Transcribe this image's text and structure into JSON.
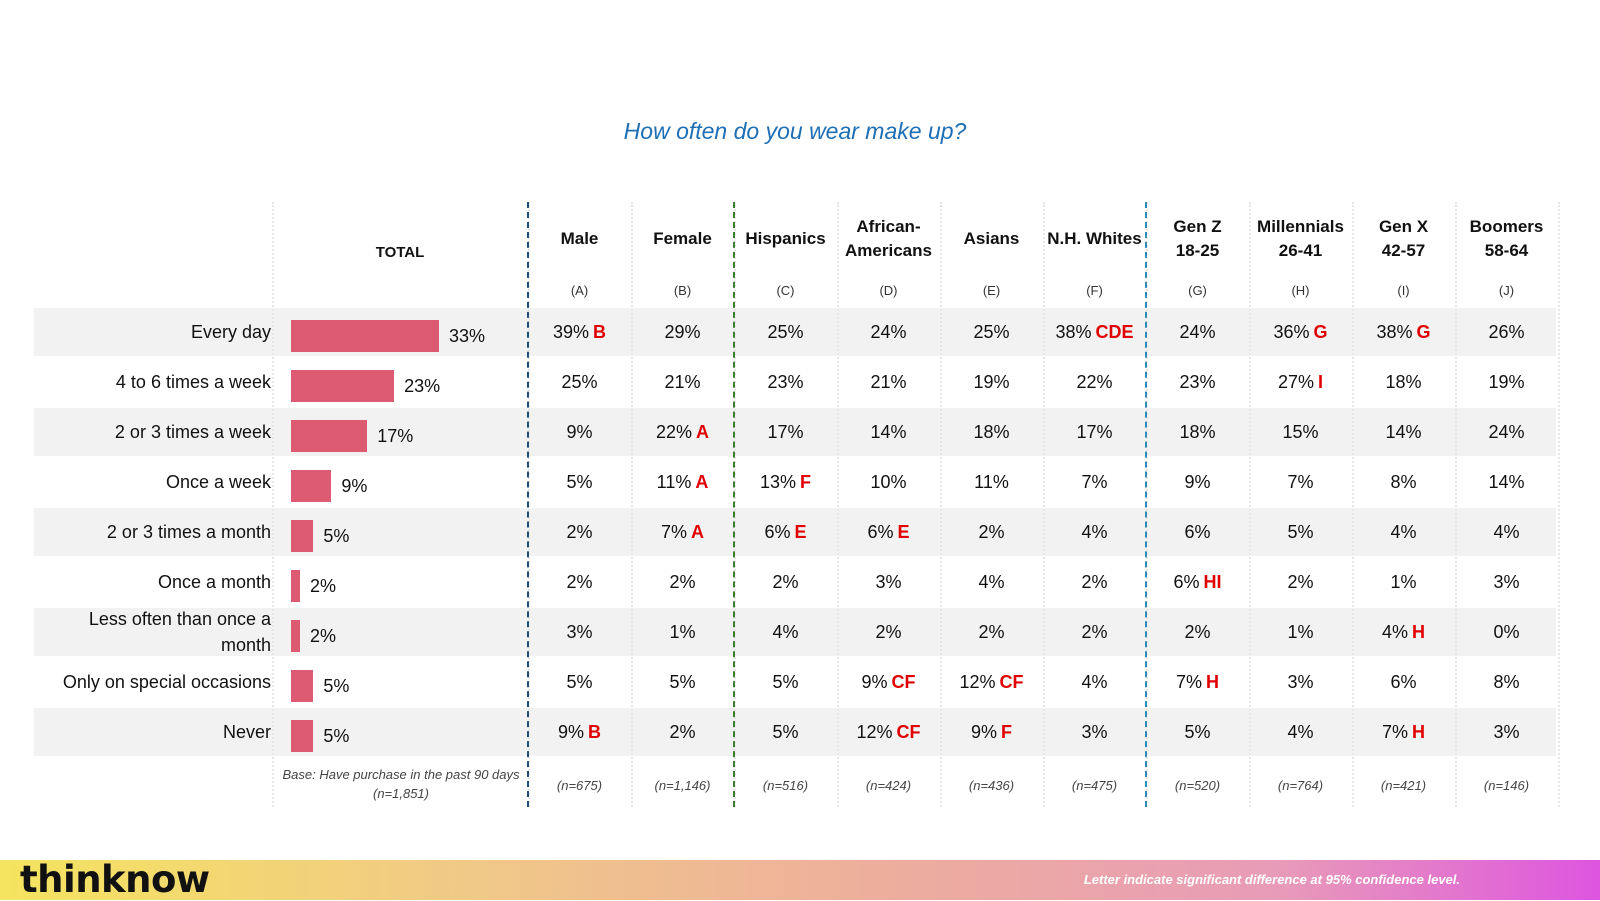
{
  "title": "How often do you wear make up?",
  "total_header": "TOTAL",
  "base_note": "Base: Have purchase in the past 90 days (n=1,851)",
  "footer": {
    "logo": "thinknow",
    "note": "Letter indicate significant difference at 95% confidence level."
  },
  "colors": {
    "bar": "#DC5A72",
    "sig": "#E00000",
    "title": "#1F6FB5"
  },
  "columns": [
    {
      "name": "Male",
      "letter": "(A)",
      "base": "(n=675)"
    },
    {
      "name": "Female",
      "letter": "(B)",
      "base": "(n=1,146)"
    },
    {
      "name": "Hispanics",
      "letter": "(C)",
      "base": "(n=516)"
    },
    {
      "name": "African-\nAmericans",
      "letter": "(D)",
      "base": "(n=424)"
    },
    {
      "name": "Asians",
      "letter": "(E)",
      "base": "(n=436)"
    },
    {
      "name": "N.H. Whites",
      "letter": "(F)",
      "base": "(n=475)"
    },
    {
      "name": "Gen Z\n18-25",
      "letter": "(G)",
      "base": "(n=520)"
    },
    {
      "name": "Millennials\n26-41",
      "letter": "(H)",
      "base": "(n=764)"
    },
    {
      "name": "Gen X\n42-57",
      "letter": "(I)",
      "base": "(n=421)"
    },
    {
      "name": "Boomers\n58-64",
      "letter": "(J)",
      "base": "(n=146)"
    }
  ],
  "rows": [
    {
      "label": "Every day",
      "total": "33%",
      "cells": [
        [
          "39%",
          "B"
        ],
        [
          "29%",
          ""
        ],
        [
          "25%",
          ""
        ],
        [
          "24%",
          ""
        ],
        [
          "25%",
          ""
        ],
        [
          "38%",
          "CDE"
        ],
        [
          "24%",
          ""
        ],
        [
          "36%",
          "G"
        ],
        [
          "38%",
          "G"
        ],
        [
          "26%",
          ""
        ]
      ]
    },
    {
      "label": "4 to 6 times a week",
      "total": "23%",
      "cells": [
        [
          "25%",
          ""
        ],
        [
          "21%",
          ""
        ],
        [
          "23%",
          ""
        ],
        [
          "21%",
          ""
        ],
        [
          "19%",
          ""
        ],
        [
          "22%",
          ""
        ],
        [
          "23%",
          ""
        ],
        [
          "27%",
          "I"
        ],
        [
          "18%",
          ""
        ],
        [
          "19%",
          ""
        ]
      ]
    },
    {
      "label": "2 or 3 times a week",
      "total": "17%",
      "cells": [
        [
          "9%",
          ""
        ],
        [
          "22%",
          "A"
        ],
        [
          "17%",
          ""
        ],
        [
          "14%",
          ""
        ],
        [
          "18%",
          ""
        ],
        [
          "17%",
          ""
        ],
        [
          "18%",
          ""
        ],
        [
          "15%",
          ""
        ],
        [
          "14%",
          ""
        ],
        [
          "24%",
          ""
        ]
      ]
    },
    {
      "label": "Once a week",
      "total": "9%",
      "cells": [
        [
          "5%",
          ""
        ],
        [
          "11%",
          "A"
        ],
        [
          "13%",
          "F"
        ],
        [
          "10%",
          ""
        ],
        [
          "11%",
          ""
        ],
        [
          "7%",
          ""
        ],
        [
          "9%",
          ""
        ],
        [
          "7%",
          ""
        ],
        [
          "8%",
          ""
        ],
        [
          "14%",
          ""
        ]
      ]
    },
    {
      "label": "2 or 3 times a month",
      "total": "5%",
      "cells": [
        [
          "2%",
          ""
        ],
        [
          "7%",
          "A"
        ],
        [
          "6%",
          "E"
        ],
        [
          "6%",
          "E"
        ],
        [
          "2%",
          ""
        ],
        [
          "4%",
          ""
        ],
        [
          "6%",
          ""
        ],
        [
          "5%",
          ""
        ],
        [
          "4%",
          ""
        ],
        [
          "4%",
          ""
        ]
      ]
    },
    {
      "label": "Once a month",
      "total": "2%",
      "cells": [
        [
          "2%",
          ""
        ],
        [
          "2%",
          ""
        ],
        [
          "2%",
          ""
        ],
        [
          "3%",
          ""
        ],
        [
          "4%",
          ""
        ],
        [
          "2%",
          ""
        ],
        [
          "6%",
          "HI"
        ],
        [
          "2%",
          ""
        ],
        [
          "1%",
          ""
        ],
        [
          "3%",
          ""
        ]
      ]
    },
    {
      "label": "Less often than once a month",
      "total": "2%",
      "cells": [
        [
          "3%",
          ""
        ],
        [
          "1%",
          ""
        ],
        [
          "4%",
          ""
        ],
        [
          "2%",
          ""
        ],
        [
          "2%",
          ""
        ],
        [
          "2%",
          ""
        ],
        [
          "2%",
          ""
        ],
        [
          "1%",
          ""
        ],
        [
          "4%",
          "H"
        ],
        [
          "0%",
          ""
        ]
      ]
    },
    {
      "label": "Only on special occasions",
      "total": "5%",
      "cells": [
        [
          "5%",
          ""
        ],
        [
          "5%",
          ""
        ],
        [
          "5%",
          ""
        ],
        [
          "9%",
          "CF"
        ],
        [
          "12%",
          "CF"
        ],
        [
          "4%",
          ""
        ],
        [
          "7%",
          "H"
        ],
        [
          "3%",
          ""
        ],
        [
          "6%",
          ""
        ],
        [
          "8%",
          ""
        ]
      ]
    },
    {
      "label": "Never",
      "total": "5%",
      "cells": [
        [
          "9%",
          "B"
        ],
        [
          "2%",
          ""
        ],
        [
          "5%",
          ""
        ],
        [
          "12%",
          "CF"
        ],
        [
          "9%",
          "F"
        ],
        [
          "3%",
          ""
        ],
        [
          "5%",
          ""
        ],
        [
          "4%",
          ""
        ],
        [
          "7%",
          "H"
        ],
        [
          "3%",
          ""
        ]
      ]
    }
  ],
  "chart_data": {
    "type": "bar",
    "title": "How often do you wear make up?",
    "categories": [
      "Every day",
      "4 to 6 times a week",
      "2 or 3 times a week",
      "Once a week",
      "2 or 3 times a month",
      "Once a month",
      "Less often than once a month",
      "Only on special occasions",
      "Never"
    ],
    "values": [
      33,
      23,
      17,
      9,
      5,
      2,
      2,
      5,
      5
    ],
    "unit": "%",
    "xlim": [
      0,
      100
    ]
  }
}
